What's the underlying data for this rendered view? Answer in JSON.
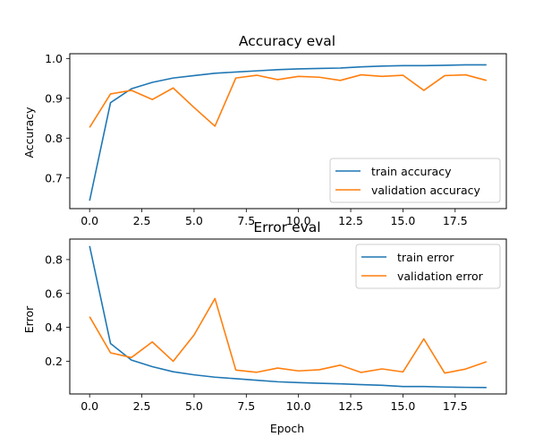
{
  "chart_data": [
    {
      "type": "line",
      "title": "Accuracy eval",
      "xlabel": "",
      "ylabel": "Accuracy",
      "xlim": [
        -0.95,
        19.95
      ],
      "ylim": [
        0.623,
        1.012
      ],
      "xticks": [
        0,
        2.5,
        5,
        7.5,
        10,
        12.5,
        15,
        17.5
      ],
      "xtick_labels": [
        "0.0",
        "2.5",
        "5.0",
        "7.5",
        "10.0",
        "12.5",
        "15.0",
        "17.5"
      ],
      "yticks": [
        0.7,
        0.8,
        0.9,
        1.0
      ],
      "ytick_labels": [
        "0.7",
        "0.8",
        "0.9",
        "1.0"
      ],
      "legend_position": "lower-right",
      "x": [
        0,
        1,
        2,
        3,
        4,
        5,
        6,
        7,
        8,
        9,
        10,
        11,
        12,
        13,
        14,
        15,
        16,
        17,
        18,
        19
      ],
      "series": [
        {
          "name": "train accuracy",
          "color": "#1f77b4",
          "values": [
            0.643,
            0.889,
            0.924,
            0.94,
            0.951,
            0.957,
            0.963,
            0.966,
            0.969,
            0.972,
            0.974,
            0.975,
            0.976,
            0.979,
            0.981,
            0.982,
            0.982,
            0.983,
            0.984,
            0.984
          ]
        },
        {
          "name": "validation accuracy",
          "color": "#ff7f0e",
          "values": [
            0.827,
            0.911,
            0.92,
            0.897,
            0.926,
            0.877,
            0.83,
            0.951,
            0.958,
            0.947,
            0.955,
            0.953,
            0.945,
            0.959,
            0.955,
            0.958,
            0.92,
            0.957,
            0.959,
            0.945
          ]
        }
      ]
    },
    {
      "type": "line",
      "title": "Error eval",
      "xlabel": "Epoch",
      "ylabel": "Error",
      "xlim": [
        -0.95,
        19.95
      ],
      "ylim": [
        0.007,
        0.921
      ],
      "xticks": [
        0,
        2.5,
        5,
        7.5,
        10,
        12.5,
        15,
        17.5
      ],
      "xtick_labels": [
        "0.0",
        "2.5",
        "5.0",
        "7.5",
        "10.0",
        "12.5",
        "15.0",
        "17.5"
      ],
      "yticks": [
        0.2,
        0.4,
        0.6,
        0.8
      ],
      "ytick_labels": [
        "0.2",
        "0.4",
        "0.6",
        "0.8"
      ],
      "legend_position": "upper-right",
      "x": [
        0,
        1,
        2,
        3,
        4,
        5,
        6,
        7,
        8,
        9,
        10,
        11,
        12,
        13,
        14,
        15,
        16,
        17,
        18,
        19
      ],
      "series": [
        {
          "name": "train error",
          "color": "#1f77b4",
          "values": [
            0.88,
            0.305,
            0.207,
            0.168,
            0.138,
            0.12,
            0.106,
            0.097,
            0.088,
            0.079,
            0.074,
            0.07,
            0.067,
            0.062,
            0.058,
            0.051,
            0.051,
            0.048,
            0.046,
            0.045
          ]
        },
        {
          "name": "validation error",
          "color": "#ff7f0e",
          "values": [
            0.463,
            0.25,
            0.222,
            0.314,
            0.2,
            0.355,
            0.57,
            0.148,
            0.135,
            0.16,
            0.143,
            0.15,
            0.177,
            0.134,
            0.155,
            0.137,
            0.332,
            0.13,
            0.154,
            0.197
          ]
        }
      ]
    }
  ]
}
